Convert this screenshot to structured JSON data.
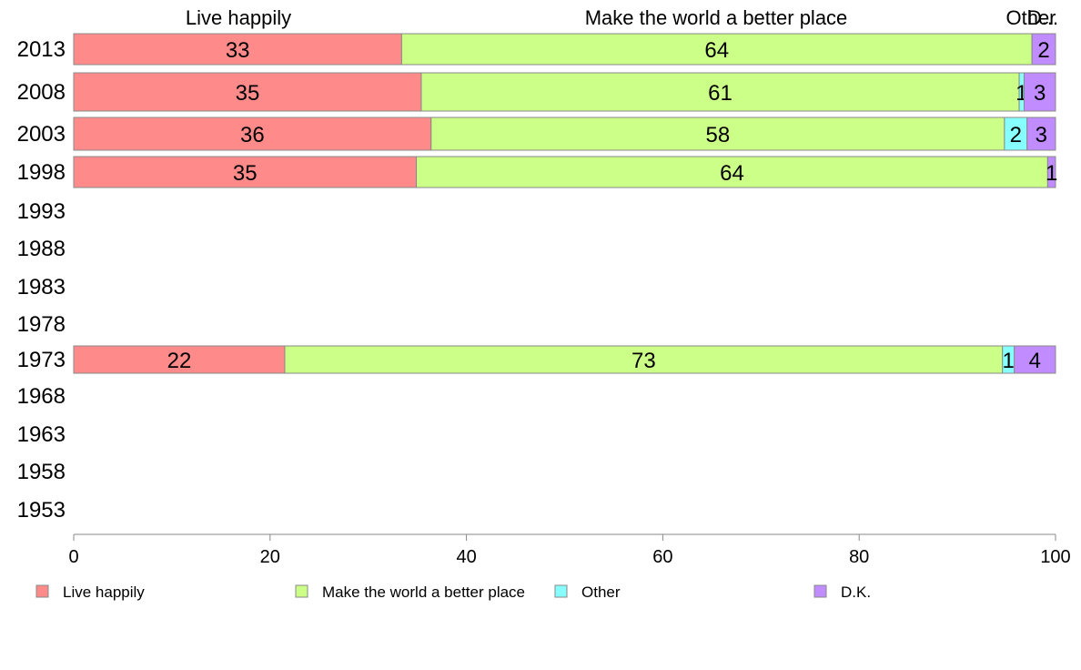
{
  "chart_data": {
    "type": "bar",
    "orientation": "horizontal",
    "stacked": true,
    "xlim": [
      0,
      100
    ],
    "x_ticks": [
      "0",
      "20",
      "40",
      "60",
      "80",
      "100"
    ],
    "categories": [
      "2013",
      "2008",
      "2003",
      "1998",
      "1993",
      "1988",
      "1983",
      "1978",
      "1973",
      "1968",
      "1963",
      "1958",
      "1953"
    ],
    "top_labels": [
      "Live happily",
      "Make the world a better place",
      "Other",
      "D..."
    ],
    "series": [
      {
        "name": "Live happily",
        "color": "#ff8a8a",
        "values": [
          33.4,
          35.4,
          36.4,
          34.9,
          null,
          null,
          null,
          null,
          21.5,
          null,
          null,
          null,
          null
        ],
        "labels": [
          "33",
          "35",
          "36",
          "35",
          "",
          "",
          "",
          "",
          "22",
          "",
          "",
          "",
          ""
        ]
      },
      {
        "name": "Make the world a better place",
        "color": "#ccff88",
        "values": [
          64.2,
          60.9,
          58.4,
          64.3,
          null,
          null,
          null,
          null,
          73.1,
          null,
          null,
          null,
          null
        ],
        "labels": [
          "64",
          "61",
          "58",
          "64",
          "",
          "",
          "",
          "",
          "73",
          "",
          "",
          "",
          ""
        ]
      },
      {
        "name": "Other",
        "color": "#88ffff",
        "values": [
          0,
          0.5,
          2.3,
          0,
          null,
          null,
          null,
          null,
          1.2,
          null,
          null,
          null,
          null
        ],
        "labels": [
          "",
          "1",
          "2",
          "",
          "",
          "",
          "",
          "",
          "1",
          "",
          "",
          "",
          ""
        ]
      },
      {
        "name": "D.K.",
        "color": "#c08cff",
        "values": [
          2.4,
          3.2,
          2.9,
          0.8,
          null,
          null,
          null,
          null,
          4.2,
          null,
          null,
          null,
          null
        ],
        "labels": [
          "2",
          "3",
          "3",
          "1",
          "",
          "",
          "",
          "",
          "4",
          "",
          "",
          "",
          ""
        ]
      }
    ],
    "legend_position": "bottom"
  }
}
